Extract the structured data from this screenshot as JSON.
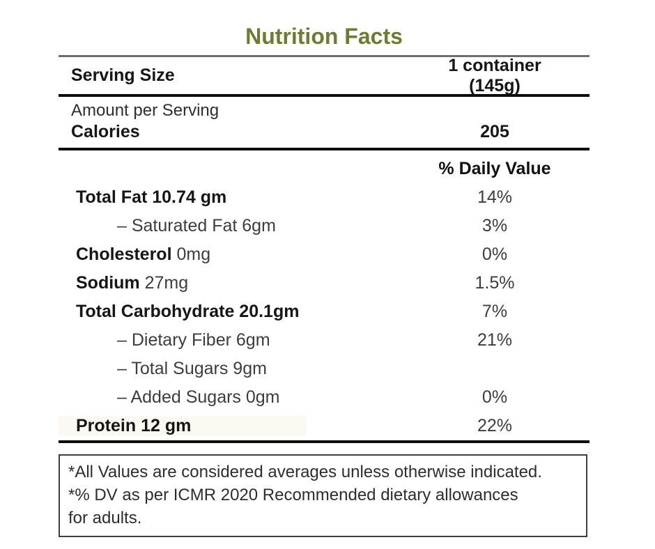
{
  "colors": {
    "title_green": "#6e7c33",
    "rule_gray": "#6e6e6e",
    "rule_black": "#0d0d0d",
    "text_regular": "#3d3d3d",
    "text_bold": "#161616",
    "protein_highlight": "#fbf9f2",
    "footnote_border": "#3f3f3f"
  },
  "title": "Nutrition Facts",
  "serving": {
    "label": "Serving Size",
    "value": "1 container (145g)"
  },
  "amount_per_serving": "Amount per Serving",
  "calories": {
    "label": "Calories",
    "value": "205"
  },
  "daily_value_header": "% Daily Value",
  "nutrients": [
    {
      "bold": "Total Fat 10.74 gm",
      "rest": "",
      "dv": "14%"
    },
    {
      "bold": "",
      "rest": "– Saturated Fat 6gm",
      "dv": "3%"
    },
    {
      "bold": "Cholesterol",
      "rest": " 0mg",
      "dv": "0%"
    },
    {
      "bold": "Sodium",
      "rest": " 27mg",
      "dv": "1.5%"
    },
    {
      "bold": "Total Carbohydrate 20.1gm",
      "rest": "",
      "dv": "7%"
    },
    {
      "bold": "",
      "rest": "– Dietary Fiber 6gm",
      "dv": "21%"
    },
    {
      "bold": "",
      "rest": "– Total Sugars 9gm",
      "dv": ""
    },
    {
      "bold": "",
      "rest": "– Added Sugars 0gm",
      "dv": "0%"
    },
    {
      "bold": "Protein 12 gm",
      "rest": "",
      "dv": "22%"
    }
  ],
  "footnote": {
    "lines": [
      "*All Values are considered averages unless otherwise indicated.",
      "*% DV as per ICMR 2020 Recommended dietary allowances",
      "for adults."
    ]
  }
}
